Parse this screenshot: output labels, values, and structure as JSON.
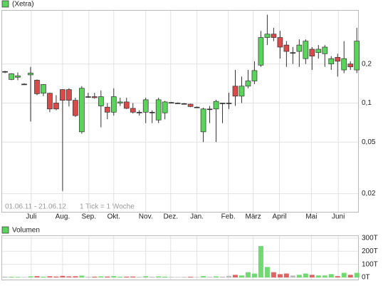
{
  "chart_data": [
    {
      "type": "candlestick",
      "legend": "(Xetra)",
      "period": "01.06.11 - 21.06.12",
      "tick_note": "1 Tick = 1 Woche",
      "categories": [
        null,
        null,
        null,
        null,
        null,
        null,
        null,
        null,
        null,
        null,
        null,
        null,
        null,
        null,
        null,
        null,
        null,
        null,
        null,
        null,
        null,
        null,
        null,
        null,
        null,
        null,
        null,
        null,
        null,
        null,
        null,
        null,
        null,
        null,
        null,
        null,
        null,
        null,
        null,
        null,
        null,
        null,
        null,
        null,
        null,
        null,
        null,
        null,
        null,
        null,
        null,
        null,
        null,
        null,
        null,
        null
      ],
      "open": [
        0.175,
        0.152,
        0.158,
        0.14,
        0.165,
        0.15,
        0.119,
        0.119,
        0.1,
        0.127,
        0.127,
        0.105,
        0.06,
        0.112,
        0.112,
        0.095,
        0.093,
        0.085,
        0.1,
        0.102,
        0.091,
        0.085,
        0.085,
        0.085,
        0.074,
        0.084,
        0.101,
        0.1,
        0.099,
        0.098,
        0.093,
        0.06,
        0.09,
        0.09,
        0.1,
        0.1,
        0.135,
        0.113,
        0.135,
        0.148,
        0.196,
        0.32,
        0.34,
        0.32,
        0.28,
        0.245,
        0.25,
        0.22,
        0.26,
        0.245,
        0.24,
        0.2,
        0.225,
        0.18,
        0.2,
        0.18
      ],
      "high": [
        0.177,
        0.17,
        0.172,
        0.142,
        0.19,
        0.152,
        0.14,
        0.12,
        0.115,
        0.128,
        0.13,
        0.11,
        0.135,
        0.12,
        0.12,
        0.125,
        0.1,
        0.13,
        0.11,
        0.11,
        0.1,
        0.088,
        0.11,
        0.088,
        0.11,
        0.104,
        0.102,
        0.101,
        0.1,
        0.099,
        0.094,
        0.092,
        0.095,
        0.106,
        0.1,
        0.12,
        0.18,
        0.16,
        0.18,
        0.21,
        0.36,
        0.48,
        0.38,
        0.36,
        0.3,
        0.27,
        0.31,
        0.31,
        0.27,
        0.28,
        0.28,
        0.23,
        0.24,
        0.3,
        0.21,
        0.38
      ],
      "low": [
        0.17,
        0.15,
        0.15,
        0.138,
        0.072,
        0.115,
        0.113,
        0.085,
        0.088,
        0.021,
        0.094,
        0.078,
        0.058,
        0.11,
        0.108,
        0.065,
        0.075,
        0.08,
        0.095,
        0.09,
        0.083,
        0.08,
        0.07,
        0.07,
        0.07,
        0.075,
        0.1,
        0.099,
        0.098,
        0.093,
        0.092,
        0.05,
        0.07,
        0.05,
        0.07,
        0.09,
        0.095,
        0.1,
        0.13,
        0.14,
        0.19,
        0.28,
        0.3,
        0.22,
        0.19,
        0.2,
        0.19,
        0.2,
        0.18,
        0.22,
        0.19,
        0.18,
        0.16,
        0.17,
        0.18,
        0.17
      ],
      "close": [
        0.175,
        0.168,
        0.162,
        0.14,
        0.17,
        0.118,
        0.139,
        0.09,
        0.09,
        0.105,
        0.105,
        0.08,
        0.13,
        0.112,
        0.11,
        0.112,
        0.085,
        0.112,
        0.102,
        0.091,
        0.085,
        0.085,
        0.106,
        0.085,
        0.106,
        0.102,
        0.101,
        0.1,
        0.099,
        0.094,
        0.093,
        0.09,
        0.09,
        0.103,
        0.1,
        0.1,
        0.113,
        0.135,
        0.148,
        0.178,
        0.32,
        0.34,
        0.32,
        0.27,
        0.25,
        0.245,
        0.28,
        0.3,
        0.23,
        0.26,
        0.27,
        0.22,
        0.21,
        0.22,
        0.19,
        0.3
      ],
      "xlim": [
        -0.45,
        55.2
      ],
      "xticks": [
        {
          "value": 4.1,
          "label": "Juli"
        },
        {
          "value": 9.0,
          "label": "Aug."
        },
        {
          "value": 13.1,
          "label": "Sep."
        },
        {
          "value": 17.0,
          "label": "Okt."
        },
        {
          "value": 22.0,
          "label": "Nov."
        },
        {
          "value": 25.9,
          "label": "Dez."
        },
        {
          "value": 30.0,
          "label": "Jan."
        },
        {
          "value": 34.9,
          "label": "Feb."
        },
        {
          "value": 38.8,
          "label": "März"
        },
        {
          "value": 42.9,
          "label": "April"
        },
        {
          "value": 47.9,
          "label": "Mai"
        },
        {
          "value": 52.1,
          "label": "Juni"
        }
      ],
      "ylim": [
        0.0145,
        0.515
      ],
      "yticks": [
        {
          "value": 0.2,
          "label": "0,2"
        },
        {
          "value": 0.1,
          "label": "0,1"
        },
        {
          "value": 0.05,
          "label": "0,05"
        },
        {
          "value": 0.02,
          "label": "0,02"
        }
      ],
      "log_scale": true,
      "grid": true,
      "up_color": "#5ad45a",
      "down_color": "#d94a4a",
      "flat_color": "#b0b0b0"
    },
    {
      "type": "bar",
      "legend": "Volumen",
      "values": [
        6,
        5,
        4,
        3,
        8,
        10,
        6,
        9,
        7,
        12,
        8,
        9,
        14,
        5,
        6,
        8,
        7,
        10,
        5,
        6,
        7,
        4,
        9,
        5,
        8,
        6,
        4,
        3,
        4,
        5,
        3,
        10,
        4,
        8,
        6,
        12,
        20,
        15,
        40,
        30,
        240,
        80,
        40,
        25,
        30,
        15,
        20,
        30,
        20,
        15,
        15,
        25,
        10,
        35,
        20,
        35
      ],
      "ylim": [
        0,
        316
      ],
      "yticks": [
        {
          "value": 0,
          "label": "0T"
        },
        {
          "value": 100,
          "label": "100T"
        },
        {
          "value": 200,
          "label": "200T"
        },
        {
          "value": 300,
          "label": "300T"
        }
      ],
      "grid": true
    }
  ]
}
